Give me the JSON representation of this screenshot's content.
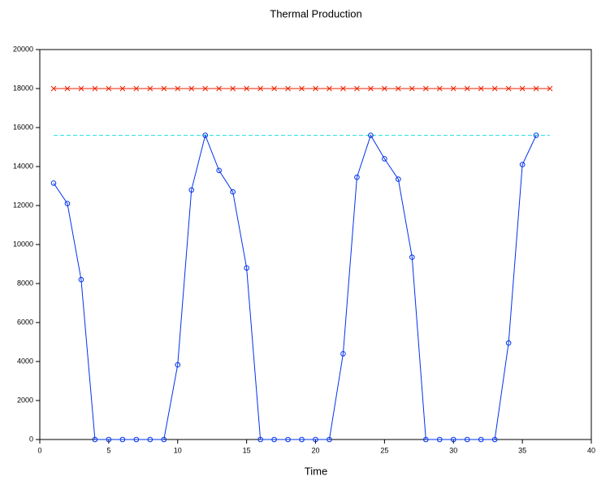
{
  "chart_data": {
    "type": "line",
    "title": "Thermal Production",
    "x_label": "Time",
    "xlim": [
      0,
      40
    ],
    "xticks": [
      0,
      5,
      10,
      15,
      20,
      25,
      30,
      35,
      40
    ],
    "ylim": [
      0,
      20000
    ],
    "yticks": [
      0,
      2000,
      4000,
      6000,
      8000,
      10000,
      12000,
      14000,
      16000,
      18000,
      20000
    ],
    "series": [
      {
        "color": "#ee2200",
        "marker": "x",
        "dash": false,
        "x": [
          1,
          2,
          3,
          4,
          5,
          6,
          7,
          8,
          9,
          10,
          11,
          12,
          13,
          14,
          15,
          16,
          17,
          18,
          19,
          20,
          21,
          22,
          23,
          24,
          25,
          26,
          27,
          28,
          29,
          30,
          31,
          32,
          33,
          34,
          35,
          36,
          37
        ],
        "values": [
          18000,
          18000,
          18000,
          18000,
          18000,
          18000,
          18000,
          18000,
          18000,
          18000,
          18000,
          18000,
          18000,
          18000,
          18000,
          18000,
          18000,
          18000,
          18000,
          18000,
          18000,
          18000,
          18000,
          18000,
          18000,
          18000,
          18000,
          18000,
          18000,
          18000,
          18000,
          18000,
          18000,
          18000,
          18000,
          18000,
          18000
        ]
      },
      {
        "color": "#22dddd",
        "marker": "none",
        "dash": true,
        "x": [
          1,
          37
        ],
        "values": [
          15600,
          15600
        ]
      },
      {
        "color": "#0033ee",
        "marker": "o",
        "dash": false,
        "x": [
          1,
          2,
          3,
          4,
          5,
          6,
          7,
          8,
          9,
          10,
          11,
          12,
          13,
          14,
          15,
          16,
          17,
          18,
          19,
          20,
          21,
          22,
          23,
          24,
          25,
          26,
          27,
          28,
          29,
          30,
          31,
          32,
          33,
          34,
          35,
          36
        ],
        "values": [
          13150,
          12100,
          8200,
          0,
          0,
          0,
          0,
          0,
          0,
          3830,
          12800,
          15600,
          13800,
          12700,
          8800,
          0,
          0,
          0,
          0,
          0,
          0,
          4400,
          13450,
          15600,
          14400,
          13350,
          9350,
          0,
          0,
          0,
          0,
          0,
          0,
          4950,
          14100,
          15600
        ]
      }
    ]
  }
}
